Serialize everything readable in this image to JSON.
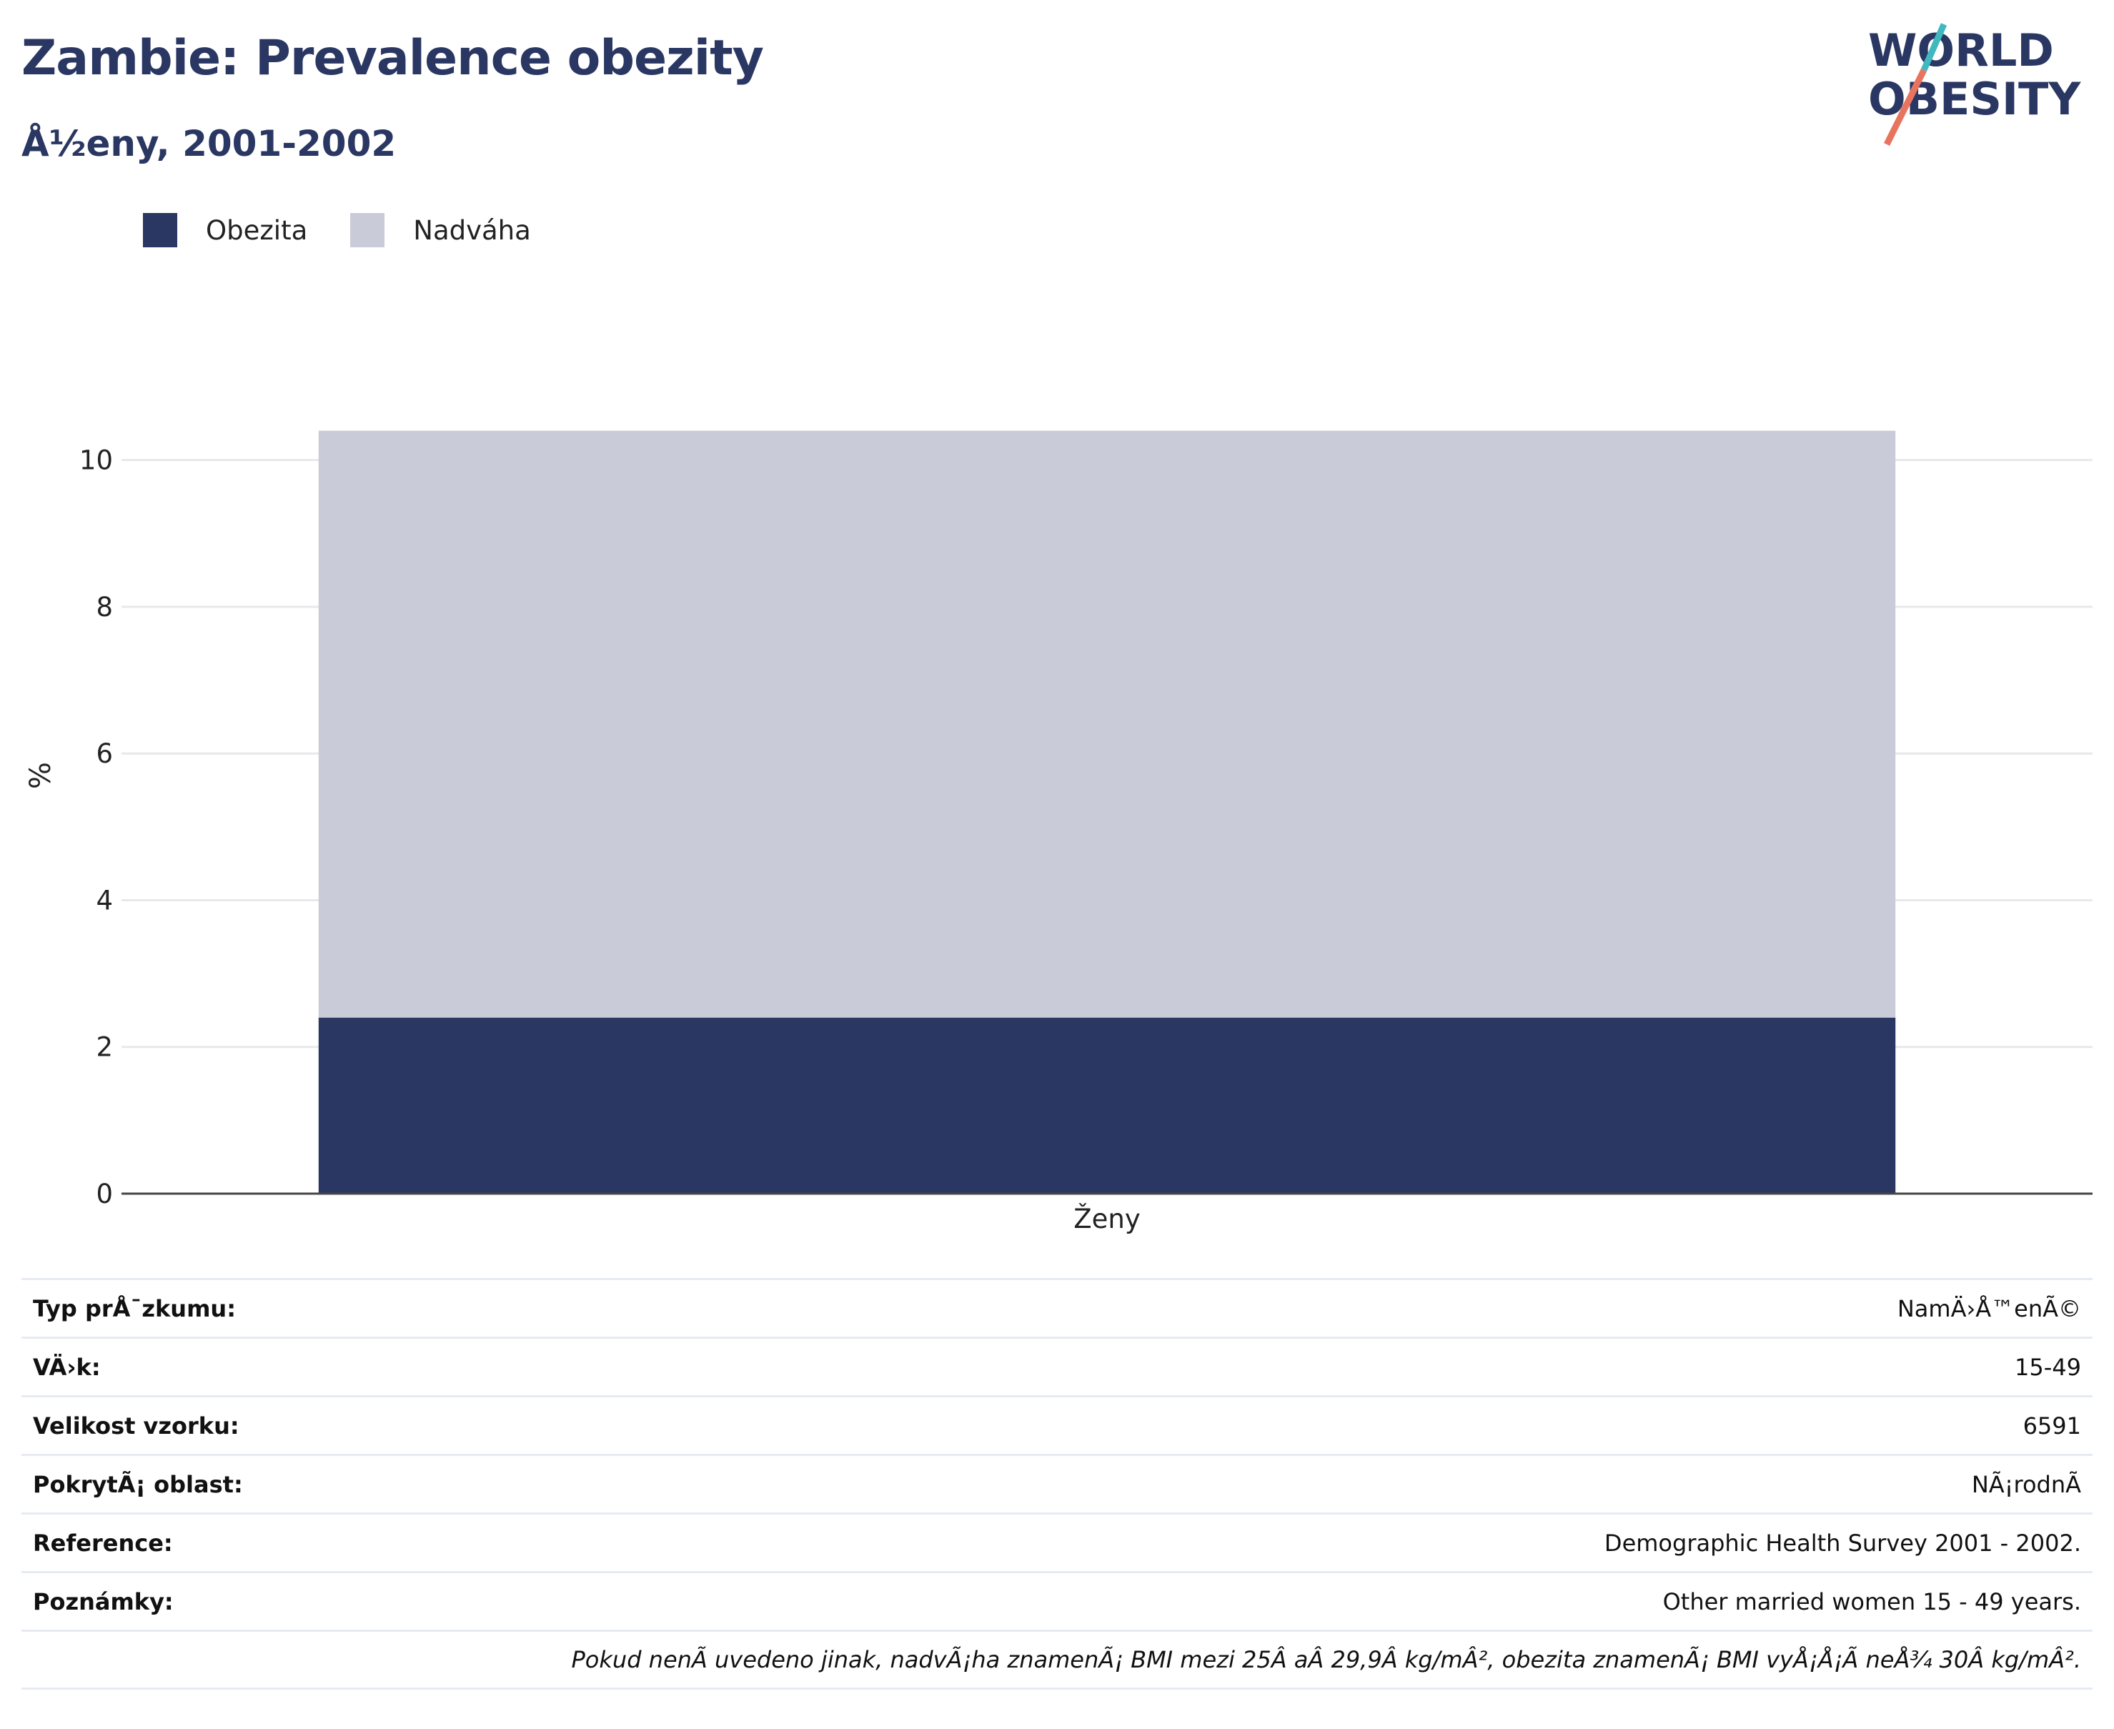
{
  "header": {
    "title": "Zambie: Prevalence obezity",
    "subtitle": "Å½eny, 2001-2002"
  },
  "logo": {
    "line1": "WORLD",
    "line2": "OBESITY"
  },
  "colors": {
    "obesity": "#2a3763",
    "overweight": "#c9ccd8",
    "title": "#2a3763",
    "logo_slash_teal": "#3fb8c0",
    "logo_slash_red": "#e8735f"
  },
  "chart_data": {
    "type": "bar",
    "stacked": true,
    "categories": [
      "Ženy"
    ],
    "series": [
      {
        "name": "Obezita",
        "values": [
          2.4
        ]
      },
      {
        "name": "Nadváha",
        "values": [
          8.0
        ]
      }
    ],
    "ylabel": "%",
    "xlabel": "",
    "ylim": [
      0,
      11.4
    ],
    "yticks": [
      0,
      2,
      4,
      6,
      8,
      10
    ],
    "grid": true,
    "legend": "top-left"
  },
  "info": {
    "rows": [
      {
        "label": "Typ prÅ¯zkumu:",
        "value": "NamÄ›Å™enÃ©"
      },
      {
        "label": "VÄ›k:",
        "value": "15-49"
      },
      {
        "label": "Velikost vzorku:",
        "value": "6591"
      },
      {
        "label": "PokrytÃ¡ oblast:",
        "value": "NÃ¡rodnÃ"
      },
      {
        "label": "Reference:",
        "value": "Demographic Health Survey 2001 - 2002."
      },
      {
        "label": "Poznámky:",
        "value": "Other married women 15 - 49 years."
      }
    ],
    "note": "Pokud nenÃ uvedeno jinak, nadvÃ¡ha znamenÃ¡ BMI mezi 25Â aÂ 29,9Â kg/mÂ², obezita znamenÃ¡ BMI vyÅ¡Å¡Ã neÅ¾ 30Â kg/mÂ²."
  }
}
